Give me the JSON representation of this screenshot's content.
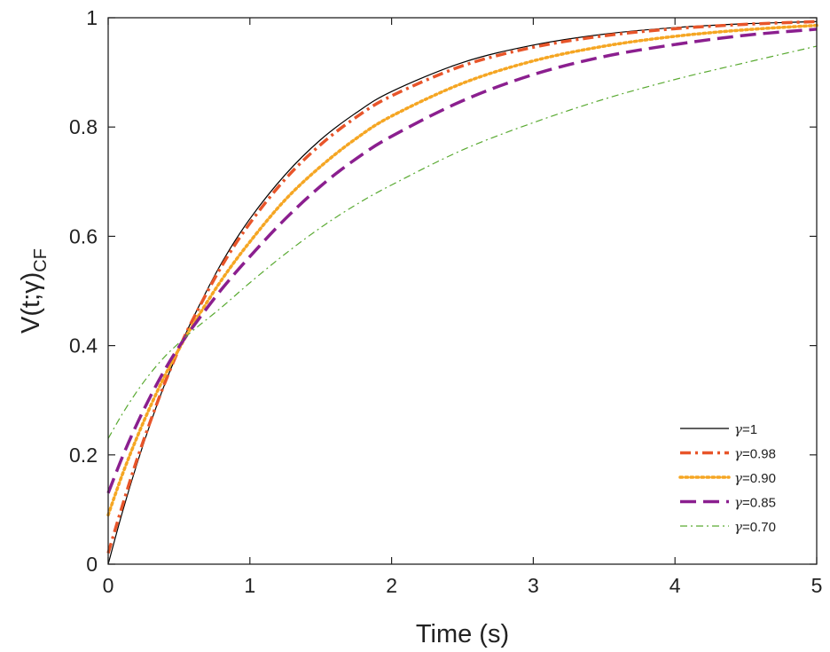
{
  "chart_data": {
    "type": "line",
    "title": "",
    "xlabel": "Time (s)",
    "ylabel": {
      "main": "V(t;γ)",
      "subscript": "CF"
    },
    "xlim": [
      0,
      5
    ],
    "ylim": [
      0,
      1
    ],
    "xticks": [
      0,
      1,
      2,
      3,
      4,
      5
    ],
    "yticks": [
      0,
      0.2,
      0.4,
      0.6,
      0.8,
      1
    ],
    "xtick_labels": [
      "0",
      "1",
      "2",
      "3",
      "4",
      "5"
    ],
    "ytick_labels": [
      "0",
      "0.2",
      "0.4",
      "0.6",
      "0.8",
      "1"
    ],
    "grid": false,
    "legend_position": "bottom-right",
    "x": [
      0,
      0.1,
      0.2,
      0.3,
      0.4,
      0.5,
      0.6,
      0.8,
      1.0,
      1.25,
      1.5,
      1.75,
      2.0,
      2.5,
      3.0,
      3.5,
      4.0,
      4.5,
      5.0
    ],
    "series": [
      {
        "gamma": "1",
        "color": "#000000",
        "style": "solid",
        "width": 1.2,
        "values": [
          0.0,
          0.095,
          0.181,
          0.259,
          0.33,
          0.393,
          0.451,
          0.551,
          0.632,
          0.713,
          0.777,
          0.826,
          0.865,
          0.918,
          0.95,
          0.97,
          0.982,
          0.989,
          0.993
        ]
      },
      {
        "gamma": "0.98",
        "color": "#e8552a",
        "style": "dashdot",
        "width": 3.5,
        "values": [
          0.02,
          0.107,
          0.189,
          0.263,
          0.332,
          0.394,
          0.449,
          0.545,
          0.624,
          0.705,
          0.768,
          0.818,
          0.857,
          0.912,
          0.946,
          0.967,
          0.98,
          0.988,
          0.993
        ]
      },
      {
        "gamma": "0.90",
        "color": "#f5a623",
        "style": "dotted",
        "width": 3.5,
        "values": [
          0.09,
          0.164,
          0.23,
          0.29,
          0.345,
          0.394,
          0.439,
          0.52,
          0.59,
          0.667,
          0.728,
          0.779,
          0.82,
          0.88,
          0.921,
          0.948,
          0.966,
          0.978,
          0.986
        ]
      },
      {
        "gamma": "0.85",
        "color": "#8b1f8f",
        "style": "dashed",
        "width": 3.5,
        "values": [
          0.13,
          0.196,
          0.255,
          0.308,
          0.356,
          0.398,
          0.435,
          0.503,
          0.563,
          0.632,
          0.692,
          0.742,
          0.783,
          0.848,
          0.896,
          0.929,
          0.951,
          0.968,
          0.979
        ]
      },
      {
        "gamma": "0.70",
        "color": "#5aaa32",
        "style": "dashdot-thin",
        "width": 1.2,
        "values": [
          0.23,
          0.275,
          0.315,
          0.35,
          0.38,
          0.405,
          0.428,
          0.47,
          0.515,
          0.568,
          0.616,
          0.658,
          0.694,
          0.758,
          0.808,
          0.851,
          0.887,
          0.918,
          0.948
        ]
      }
    ]
  }
}
